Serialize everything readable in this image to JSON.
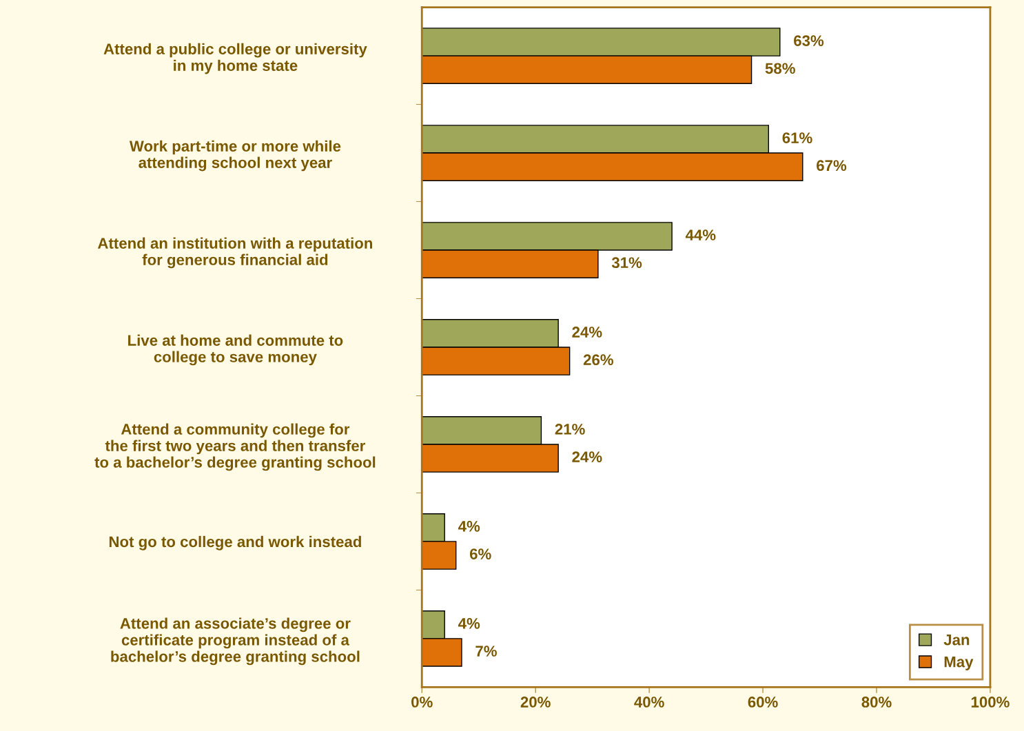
{
  "chart_data": {
    "type": "bar",
    "orientation": "horizontal",
    "categories": [
      "Attend a public college or university\nin my home state",
      "Work part-time or more while\nattending school next year",
      "Attend an institution with a reputation\nfor generous financial aid",
      "Live at home and commute to\ncollege to save money",
      "Attend a community college for\nthe first two years and then transfer\nto a bachelor’s degree granting school",
      "Not go to college and work instead",
      "Attend an associate’s degree or\ncertificate program instead of a\nbachelor’s degree granting school"
    ],
    "series": [
      {
        "name": "Jan",
        "color": "#9fa85a",
        "values": [
          63,
          61,
          44,
          24,
          21,
          4,
          4
        ],
        "value_labels": [
          "63%",
          "61%",
          "44%",
          "24%",
          "21%",
          "4%",
          "4%"
        ]
      },
      {
        "name": "May",
        "color": "#e07008",
        "values": [
          58,
          67,
          31,
          26,
          24,
          6,
          7
        ],
        "value_labels": [
          "58%",
          "67%",
          "31%",
          "26%",
          "24%",
          "6%",
          "7%"
        ]
      }
    ],
    "xlim": [
      0,
      100
    ],
    "xticks": [
      {
        "value": 0,
        "label": "0%"
      },
      {
        "value": 20,
        "label": "20%"
      },
      {
        "value": 40,
        "label": "40%"
      },
      {
        "value": 60,
        "label": "60%"
      },
      {
        "value": 80,
        "label": "80%"
      },
      {
        "value": 100,
        "label": "100%"
      }
    ],
    "grid": false,
    "legend": "bottom right"
  }
}
